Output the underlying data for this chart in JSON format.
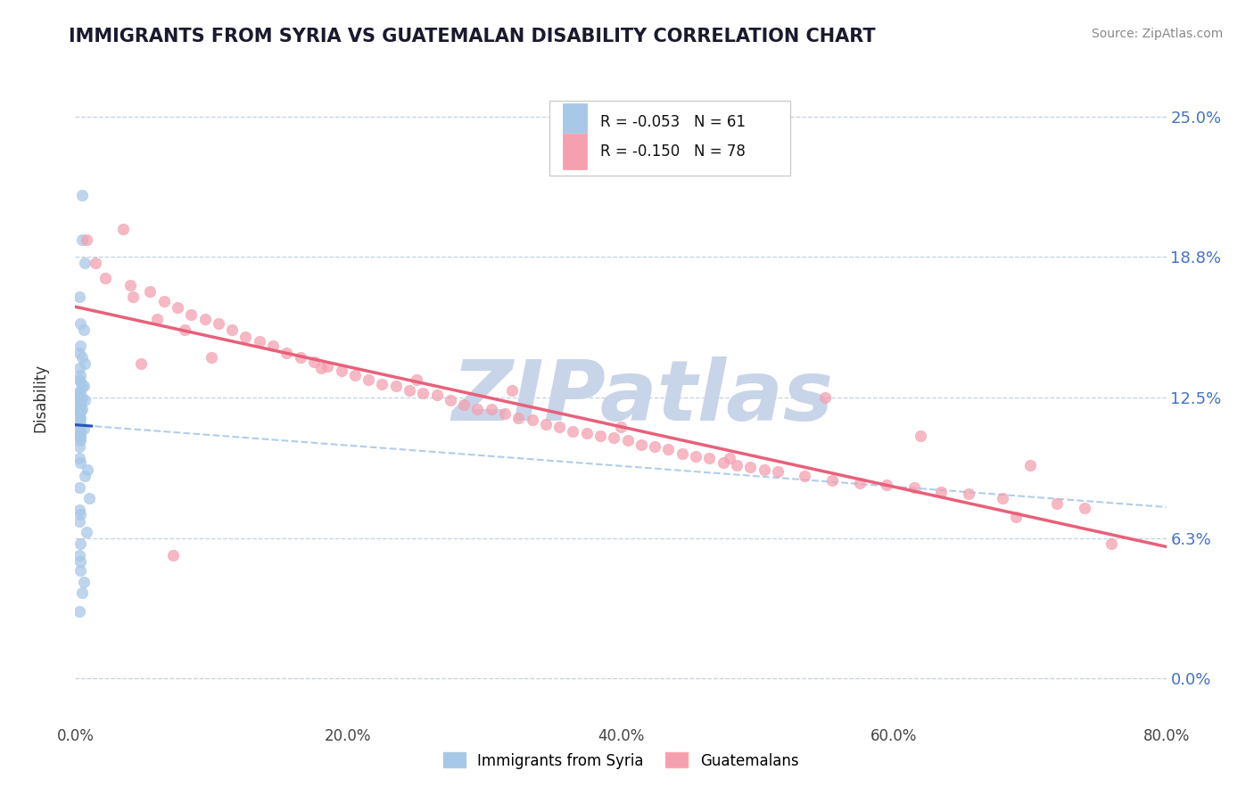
{
  "title": "IMMIGRANTS FROM SYRIA VS GUATEMALAN DISABILITY CORRELATION CHART",
  "source": "Source: ZipAtlas.com",
  "ylabel": "Disability",
  "legend_label1": "Immigrants from Syria",
  "legend_label2": "Guatemalans",
  "R1": -0.053,
  "N1": 61,
  "R2": -0.15,
  "N2": 78,
  "color1": "#A8C8E8",
  "color2": "#F4A0B0",
  "trendline1_color": "#2255BB",
  "trendline2_color": "#E8607A",
  "xlim": [
    0.0,
    0.8
  ],
  "ylim": [
    -0.02,
    0.27
  ],
  "yticks": [
    0.0,
    0.0625,
    0.125,
    0.1875,
    0.25
  ],
  "ytick_labels": [
    "0.0%",
    "6.3%",
    "12.5%",
    "18.8%",
    "25.0%"
  ],
  "xticks": [
    0.0,
    0.2,
    0.4,
    0.6,
    0.8
  ],
  "xtick_labels": [
    "0.0%",
    "20.0%",
    "40.0%",
    "60.0%",
    "80.0%"
  ],
  "background_color": "#FFFFFF",
  "grid_color": "#BBCCDD",
  "watermark": "ZIPatlas",
  "watermark_color": "#C8D4E8",
  "syria_x": [
    0.005,
    0.005,
    0.007,
    0.003,
    0.004,
    0.006,
    0.004,
    0.003,
    0.005,
    0.007,
    0.003,
    0.004,
    0.003,
    0.004,
    0.006,
    0.005,
    0.004,
    0.003,
    0.003,
    0.003,
    0.005,
    0.007,
    0.003,
    0.004,
    0.003,
    0.003,
    0.005,
    0.004,
    0.003,
    0.003,
    0.003,
    0.004,
    0.003,
    0.003,
    0.003,
    0.004,
    0.003,
    0.006,
    0.004,
    0.004,
    0.003,
    0.004,
    0.004,
    0.003,
    0.003,
    0.004,
    0.009,
    0.007,
    0.003,
    0.01,
    0.003,
    0.004,
    0.003,
    0.008,
    0.004,
    0.003,
    0.004,
    0.004,
    0.006,
    0.005,
    0.003
  ],
  "syria_y": [
    0.215,
    0.195,
    0.185,
    0.17,
    0.158,
    0.155,
    0.148,
    0.145,
    0.143,
    0.14,
    0.138,
    0.135,
    0.133,
    0.132,
    0.13,
    0.13,
    0.128,
    0.127,
    0.126,
    0.125,
    0.125,
    0.124,
    0.123,
    0.122,
    0.121,
    0.12,
    0.12,
    0.119,
    0.118,
    0.117,
    0.117,
    0.116,
    0.115,
    0.114,
    0.113,
    0.113,
    0.112,
    0.111,
    0.11,
    0.109,
    0.108,
    0.107,
    0.106,
    0.103,
    0.098,
    0.096,
    0.093,
    0.09,
    0.085,
    0.08,
    0.075,
    0.073,
    0.07,
    0.065,
    0.06,
    0.055,
    0.052,
    0.048,
    0.043,
    0.038,
    0.03
  ],
  "guatemala_x": [
    0.008,
    0.015,
    0.022,
    0.035,
    0.042,
    0.055,
    0.065,
    0.075,
    0.085,
    0.095,
    0.105,
    0.115,
    0.125,
    0.135,
    0.145,
    0.155,
    0.165,
    0.175,
    0.185,
    0.195,
    0.205,
    0.215,
    0.225,
    0.235,
    0.245,
    0.255,
    0.265,
    0.275,
    0.285,
    0.295,
    0.305,
    0.315,
    0.325,
    0.335,
    0.345,
    0.355,
    0.365,
    0.375,
    0.385,
    0.395,
    0.405,
    0.415,
    0.425,
    0.435,
    0.445,
    0.455,
    0.465,
    0.475,
    0.485,
    0.495,
    0.505,
    0.515,
    0.535,
    0.555,
    0.575,
    0.595,
    0.615,
    0.635,
    0.655,
    0.68,
    0.7,
    0.72,
    0.74,
    0.76,
    0.04,
    0.06,
    0.08,
    0.1,
    0.18,
    0.25,
    0.32,
    0.4,
    0.48,
    0.55,
    0.62,
    0.69,
    0.048,
    0.072
  ],
  "guatemala_y": [
    0.195,
    0.185,
    0.178,
    0.2,
    0.17,
    0.172,
    0.168,
    0.165,
    0.162,
    0.16,
    0.158,
    0.155,
    0.152,
    0.15,
    0.148,
    0.145,
    0.143,
    0.141,
    0.139,
    0.137,
    0.135,
    0.133,
    0.131,
    0.13,
    0.128,
    0.127,
    0.126,
    0.124,
    0.122,
    0.12,
    0.12,
    0.118,
    0.116,
    0.115,
    0.113,
    0.112,
    0.11,
    0.109,
    0.108,
    0.107,
    0.106,
    0.104,
    0.103,
    0.102,
    0.1,
    0.099,
    0.098,
    0.096,
    0.095,
    0.094,
    0.093,
    0.092,
    0.09,
    0.088,
    0.087,
    0.086,
    0.085,
    0.083,
    0.082,
    0.08,
    0.095,
    0.078,
    0.076,
    0.06,
    0.175,
    0.16,
    0.155,
    0.143,
    0.138,
    0.133,
    0.128,
    0.112,
    0.098,
    0.125,
    0.108,
    0.072,
    0.14,
    0.055
  ]
}
